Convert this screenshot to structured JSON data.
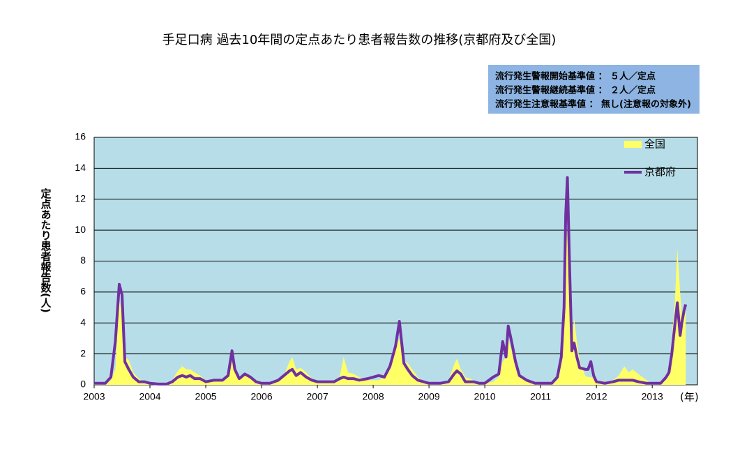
{
  "chart_data": {
    "type": "line",
    "title": "手足口病  過去10年間の定点あたり患者報告数の推移(京都府及び全国)",
    "notes": [
      {
        "text": "流行発生警報開始基準値 ： ５人／定点",
        "color": "#ff0000"
      },
      {
        "text": "流行発生警報継続基準値 ： ２人／定点",
        "color": "#ffff00"
      },
      {
        "text": "流行発生注意報基準値 ： 無し(注意報の対象外)",
        "color": "#000000"
      }
    ],
    "y_label": "定点あたり患者報告数(人)",
    "x_unit": "(年)",
    "xlim": [
      2003,
      2013.81
    ],
    "xticks": [
      2003,
      2004,
      2005,
      2006,
      2007,
      2008,
      2009,
      2010,
      2011,
      2012,
      2013
    ],
    "ylim": [
      0,
      16
    ],
    "yticks": [
      0,
      2,
      4,
      6,
      8,
      10,
      12,
      14,
      16
    ],
    "grid": true,
    "x": [
      2003.0,
      2003.1,
      2003.2,
      2003.3,
      2003.38,
      2003.45,
      2003.5,
      2003.55,
      2003.62,
      2003.7,
      2003.8,
      2003.9,
      2004.0,
      2004.15,
      2004.3,
      2004.4,
      2004.5,
      2004.58,
      2004.65,
      2004.72,
      2004.8,
      2004.9,
      2005.0,
      2005.15,
      2005.3,
      2005.4,
      2005.47,
      2005.52,
      2005.6,
      2005.7,
      2005.8,
      2005.9,
      2006.0,
      2006.15,
      2006.3,
      2006.4,
      2006.5,
      2006.55,
      2006.62,
      2006.7,
      2006.8,
      2006.9,
      2007.0,
      2007.15,
      2007.3,
      2007.4,
      2007.47,
      2007.55,
      2007.65,
      2007.75,
      2007.9,
      2008.0,
      2008.1,
      2008.2,
      2008.3,
      2008.4,
      2008.47,
      2008.55,
      2008.62,
      2008.7,
      2008.8,
      2008.9,
      2009.0,
      2009.2,
      2009.35,
      2009.45,
      2009.5,
      2009.57,
      2009.65,
      2009.8,
      2009.9,
      2010.0,
      2010.15,
      2010.25,
      2010.32,
      2010.38,
      2010.42,
      2010.48,
      2010.55,
      2010.62,
      2010.75,
      2010.9,
      2011.0,
      2011.2,
      2011.3,
      2011.37,
      2011.42,
      2011.45,
      2011.48,
      2011.52,
      2011.56,
      2011.6,
      2011.65,
      2011.7,
      2011.8,
      2011.85,
      2011.9,
      2011.95,
      2012.0,
      2012.15,
      2012.3,
      2012.4,
      2012.5,
      2012.58,
      2012.65,
      2012.75,
      2012.9,
      2013.0,
      2013.15,
      2013.25,
      2013.3,
      2013.35,
      2013.4,
      2013.45,
      2013.5,
      2013.53,
      2013.57,
      2013.6
    ],
    "series": [
      {
        "name": "全国",
        "type": "area",
        "color": "#ffff66",
        "values": [
          0.1,
          0.15,
          0.1,
          0.3,
          1.0,
          5.5,
          4.5,
          1.8,
          1.6,
          0.8,
          0.4,
          0.2,
          0.1,
          0.05,
          0.1,
          0.3,
          0.9,
          1.2,
          1.0,
          1.0,
          0.8,
          0.6,
          0.3,
          0.2,
          0.3,
          0.8,
          1.5,
          1.0,
          0.6,
          0.6,
          0.5,
          0.3,
          0.2,
          0.1,
          0.2,
          0.6,
          1.5,
          1.8,
          1.0,
          1.1,
          0.8,
          0.4,
          0.2,
          0.15,
          0.2,
          0.5,
          1.8,
          0.8,
          0.7,
          0.5,
          0.3,
          0.3,
          0.3,
          0.5,
          1.0,
          2.4,
          3.0,
          1.5,
          1.4,
          1.0,
          0.5,
          0.2,
          0.1,
          0.1,
          0.3,
          1.3,
          1.7,
          1.0,
          0.5,
          0.3,
          0.1,
          0.1,
          0.2,
          0.5,
          1.5,
          1.8,
          3.0,
          2.2,
          1.2,
          0.7,
          0.3,
          0.1,
          0.05,
          0.1,
          0.3,
          1.5,
          4,
          9.0,
          10,
          6.5,
          2.5,
          4.3,
          2.8,
          1.5,
          0.6,
          0.5,
          0.5,
          0.4,
          0.3,
          0.2,
          0.3,
          0.6,
          1.2,
          0.8,
          1.0,
          0.7,
          0.3,
          0.1,
          0.1,
          0.3,
          1.0,
          3.0,
          5.0,
          8.8,
          6.0,
          4.5,
          5.0,
          5.0
        ]
      },
      {
        "name": "京都府",
        "type": "line",
        "color": "#7030a0",
        "values": [
          0.1,
          0.1,
          0.1,
          0.5,
          2.8,
          6.5,
          5.8,
          1.5,
          1.0,
          0.5,
          0.2,
          0.2,
          0.1,
          0.05,
          0.05,
          0.2,
          0.5,
          0.6,
          0.5,
          0.6,
          0.4,
          0.4,
          0.2,
          0.3,
          0.3,
          0.6,
          2.2,
          1.0,
          0.4,
          0.7,
          0.5,
          0.2,
          0.1,
          0.1,
          0.3,
          0.6,
          0.9,
          1.0,
          0.6,
          0.8,
          0.5,
          0.3,
          0.2,
          0.2,
          0.2,
          0.4,
          0.5,
          0.4,
          0.4,
          0.3,
          0.4,
          0.5,
          0.6,
          0.5,
          1.2,
          2.5,
          4.1,
          1.4,
          1.0,
          0.6,
          0.3,
          0.2,
          0.1,
          0.1,
          0.2,
          0.7,
          0.9,
          0.7,
          0.2,
          0.2,
          0.1,
          0.1,
          0.5,
          0.7,
          2.8,
          1.8,
          3.8,
          2.8,
          1.5,
          0.6,
          0.3,
          0.1,
          0.1,
          0.1,
          0.5,
          1.8,
          5,
          11,
          13.4,
          7.5,
          2.2,
          2.7,
          1.8,
          1.1,
          1.0,
          1.0,
          1.5,
          0.6,
          0.2,
          0.1,
          0.2,
          0.3,
          0.3,
          0.3,
          0.3,
          0.2,
          0.1,
          0.1,
          0.1,
          0.5,
          0.8,
          2.0,
          3.7,
          5.3,
          3.2,
          4.0,
          4.8,
          5.2
        ]
      }
    ]
  }
}
